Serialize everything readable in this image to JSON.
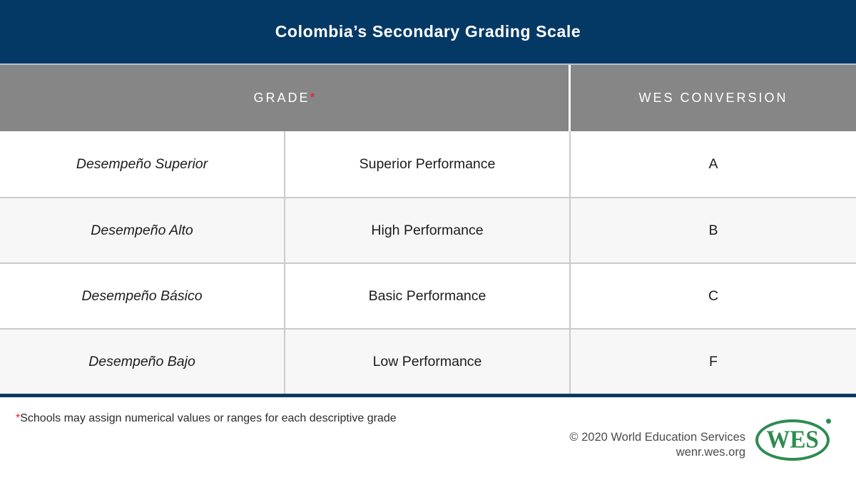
{
  "title": "Colombia’s Secondary Grading Scale",
  "chart_data": {
    "type": "table",
    "title": "Colombia’s Secondary Grading Scale",
    "header_labels": [
      "GRADE*",
      "WES CONVERSION"
    ],
    "rows": [
      [
        "Desempeño Superior",
        "Superior Performance",
        "A"
      ],
      [
        "Desempeño Alto",
        "High Performance",
        "B"
      ],
      [
        "Desempeño Básico",
        "Basic Performance",
        "C"
      ],
      [
        "Desempeño Bajo",
        "Low Performance",
        "F"
      ]
    ],
    "footnote": "*Schools may assign numerical values or ranges for each descriptive grade"
  },
  "table": {
    "header": {
      "grade_label": "GRADE",
      "note_marker": "*",
      "wes_label": "WES CONVERSION"
    },
    "rows": [
      {
        "grade_local": "Desempeño Superior",
        "grade_english": "Superior Performance",
        "wes": "A"
      },
      {
        "grade_local": "Desempeño Alto",
        "grade_english": "High Performance",
        "wes": "B"
      },
      {
        "grade_local": "Desempeño Básico",
        "grade_english": "Basic Performance",
        "wes": "C"
      },
      {
        "grade_local": "Desempeño Bajo",
        "grade_english": "Low Performance",
        "wes": "F"
      }
    ]
  },
  "footnote": {
    "marker": "*",
    "text": "Schools may assign numerical values or ranges for each descriptive grade"
  },
  "credit": {
    "copyright": "© 2020 World Education Services",
    "website": "wenr.wes.org"
  },
  "logo": {
    "text": "WES"
  },
  "colors": {
    "navy": "#043966",
    "header_gray": "#868686",
    "alt_row": "#f7f7f7",
    "divider": "#cbcbcb",
    "red": "#ee1c25",
    "logo_green": "#2e8b50"
  }
}
